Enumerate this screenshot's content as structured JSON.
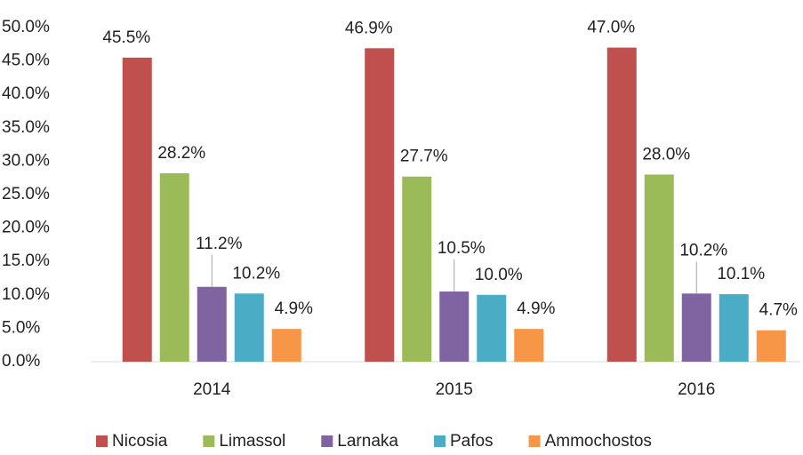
{
  "chart_data": {
    "type": "bar",
    "categories": [
      "2014",
      "2015",
      "2016"
    ],
    "series": [
      {
        "name": "Nicosia",
        "color": "#c0504d",
        "values": [
          45.5,
          46.9,
          47.0
        ],
        "value_labels": [
          "45.5%",
          "46.9%",
          "47.0%"
        ]
      },
      {
        "name": "Limassol",
        "color": "#9bbb59",
        "values": [
          28.2,
          27.7,
          28.0
        ],
        "value_labels": [
          "28.2%",
          "27.7%",
          "28.0%"
        ]
      },
      {
        "name": "Larnaka",
        "color": "#8064a2",
        "values": [
          11.2,
          10.5,
          10.2
        ],
        "value_labels": [
          "11.2%",
          "10.5%",
          "10.2%"
        ]
      },
      {
        "name": "Pafos",
        "color": "#4bacc6",
        "values": [
          10.2,
          10.0,
          10.1
        ],
        "value_labels": [
          "10.2%",
          "10.0%",
          "10.1%"
        ]
      },
      {
        "name": "Ammochostos",
        "color": "#f79646",
        "values": [
          4.9,
          4.9,
          4.7
        ],
        "value_labels": [
          "4.9%",
          "4.9%",
          "4.7%"
        ]
      }
    ],
    "ylim": [
      0,
      50
    ],
    "yticks": [
      {
        "value": 0,
        "label": "0.0%"
      },
      {
        "value": 5,
        "label": "5.0%"
      },
      {
        "value": 10,
        "label": "10.0%"
      },
      {
        "value": 15,
        "label": "15.0%"
      },
      {
        "value": 20,
        "label": "20.0%"
      },
      {
        "value": 25,
        "label": "25.0%"
      },
      {
        "value": 30,
        "label": "30.0%"
      },
      {
        "value": 35,
        "label": "35.0%"
      },
      {
        "value": 40,
        "label": "40.0%"
      },
      {
        "value": 45,
        "label": "45.0%"
      },
      {
        "value": 50,
        "label": "50.0%"
      }
    ],
    "legend": "bottom"
  }
}
